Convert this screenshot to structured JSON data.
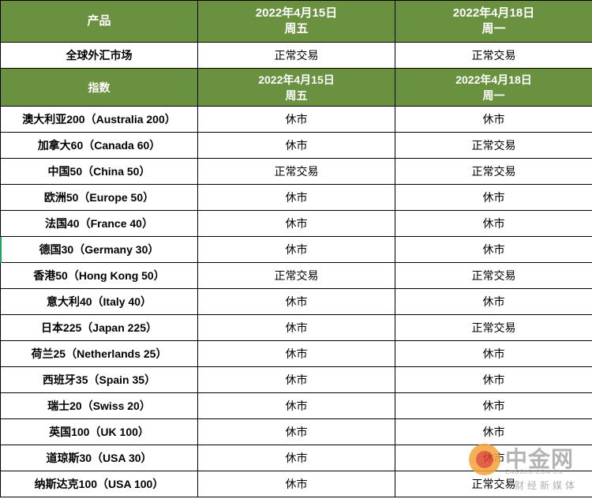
{
  "header_top": {
    "product_label": "产品",
    "date1": "2022年4月15日",
    "day1": "周五",
    "date2": "2022年4月18日",
    "day2": "周一"
  },
  "forex_row": {
    "name": "全球外汇市场",
    "status1": "正常交易",
    "status2": "正常交易"
  },
  "header_index": {
    "index_label": "指数",
    "date1": "2022年4月15日",
    "day1": "周五",
    "date2": "2022年4月18日",
    "day2": "周一"
  },
  "indices": [
    {
      "name": "澳大利亚200（Australia 200）",
      "status1": "休市",
      "status2": "休市"
    },
    {
      "name": "加拿大60（Canada 60）",
      "status1": "休市",
      "status2": "正常交易"
    },
    {
      "name": "中国50（China 50）",
      "status1": "正常交易",
      "status2": "正常交易"
    },
    {
      "name": "欧洲50（Europe 50）",
      "status1": "休市",
      "status2": "休市"
    },
    {
      "name": "法国40（France 40）",
      "status1": "休市",
      "status2": "休市"
    },
    {
      "name": "德国30（Germany 30）",
      "status1": "休市",
      "status2": "休市"
    },
    {
      "name": "香港50（Hong Kong 50）",
      "status1": "正常交易",
      "status2": "正常交易"
    },
    {
      "name": "意大利40（Italy 40）",
      "status1": "休市",
      "status2": "休市"
    },
    {
      "name": "日本225（Japan 225）",
      "status1": "休市",
      "status2": "正常交易"
    },
    {
      "name": "荷兰25（Netherlands 25）",
      "status1": "休市",
      "status2": "休市"
    },
    {
      "name": "西班牙35（Spain 35）",
      "status1": "休市",
      "status2": "休市"
    },
    {
      "name": "瑞士20（Swiss 20）",
      "status1": "休市",
      "status2": "休市"
    },
    {
      "name": "英国100（UK 100）",
      "status1": "休市",
      "status2": "休市"
    },
    {
      "name": "道琼斯30（USA 30）",
      "status1": "休市",
      "status2": "休市"
    },
    {
      "name": "纳斯达克100（USA 100）",
      "status1": "休市",
      "status2": "正常交易"
    }
  ],
  "watermark": {
    "title": "中金网",
    "url": "CNGOLD.COM.CN",
    "subtitle": "财经新媒体"
  },
  "colors": {
    "header_green": "#6a913f",
    "border": "#000000",
    "logo_orange": "#f3a23a",
    "logo_red": "#e0462a"
  }
}
